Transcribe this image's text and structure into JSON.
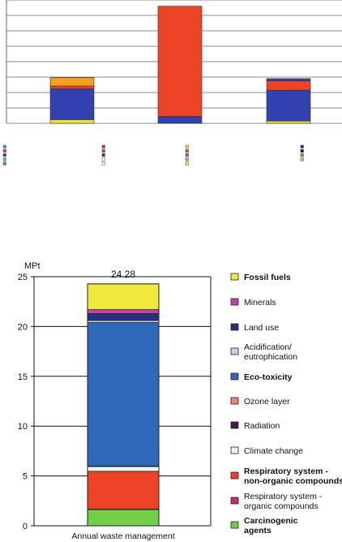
{
  "chart_data": [
    {
      "type": "bar",
      "stacked": true,
      "categories": [
        "",
        "",
        "",
        ""
      ],
      "series": [
        {
          "color": "#e8e43a",
          "values": [
            2.4,
            0,
            0,
            1.5
          ]
        },
        {
          "color": "#3340b0",
          "values": [
            20,
            4.5,
            0,
            20
          ]
        },
        {
          "color": "#ec4225",
          "values": [
            1.8,
            71.5,
            0,
            6
          ]
        },
        {
          "color": "#f5a023",
          "values": [
            5.4,
            0,
            0,
            0
          ]
        },
        {
          "color": "#3340b0",
          "values": [
            0,
            0,
            0,
            1.5
          ]
        }
      ],
      "ylim": [
        0,
        80
      ],
      "grid": true,
      "legend_swatches": [
        [
          "#3a9de0",
          "#e04070",
          "#3340b0",
          "#7ab0d8",
          "#40a0a0"
        ],
        [
          "#c03080",
          "#e04040",
          "#303080",
          "#ffffff",
          "#ffffff"
        ],
        [
          "#e8e43a",
          "#ec4225",
          "#8060c0",
          "#f5a023",
          "#f0e080"
        ],
        [
          "#303080",
          "#101010",
          "#40c040",
          "#c0d040"
        ]
      ]
    },
    {
      "type": "bar",
      "stacked": true,
      "unit": "MPt",
      "total_label": "24.28",
      "categories": [
        "Annual waste management"
      ],
      "yticks": [
        "0",
        "5",
        "10",
        "15",
        "20",
        "25"
      ],
      "ylim": [
        0,
        25
      ],
      "grid": true,
      "legend_position": "right",
      "segments": [
        {
          "name": "Carcinogenic agents",
          "value": 1.65,
          "color": "#6fcf47",
          "bold": true
        },
        {
          "name": "Respiratory system - organic compounds",
          "value": 0.02,
          "color": "#c0306e",
          "bold": false
        },
        {
          "name": "Respiratory system - non-organic compounds",
          "value": 3.8,
          "color": "#ec4225",
          "bold": true
        },
        {
          "name": "Climate change",
          "value": 0.5,
          "color": "#e6f8f2",
          "bold": false
        },
        {
          "name": "Radiation",
          "value": 0.02,
          "color": "#4a1450",
          "bold": false
        },
        {
          "name": "Ozone layer",
          "value": 0.01,
          "color": "#f08070",
          "bold": false
        },
        {
          "name": "Eco-toxicity",
          "value": 14.4,
          "color": "#3068b8",
          "bold": true
        },
        {
          "name": "Acidification/ eutrophication",
          "value": 0.2,
          "color": "#c8d0f0",
          "bold": false
        },
        {
          "name": "Land use",
          "value": 0.7,
          "color": "#283080",
          "bold": false
        },
        {
          "name": "Minerals",
          "value": 0.4,
          "color": "#c040b0",
          "bold": false
        },
        {
          "name": "Fossil fuels",
          "value": 2.58,
          "color": "#f0e83a",
          "bold": true
        }
      ]
    }
  ]
}
